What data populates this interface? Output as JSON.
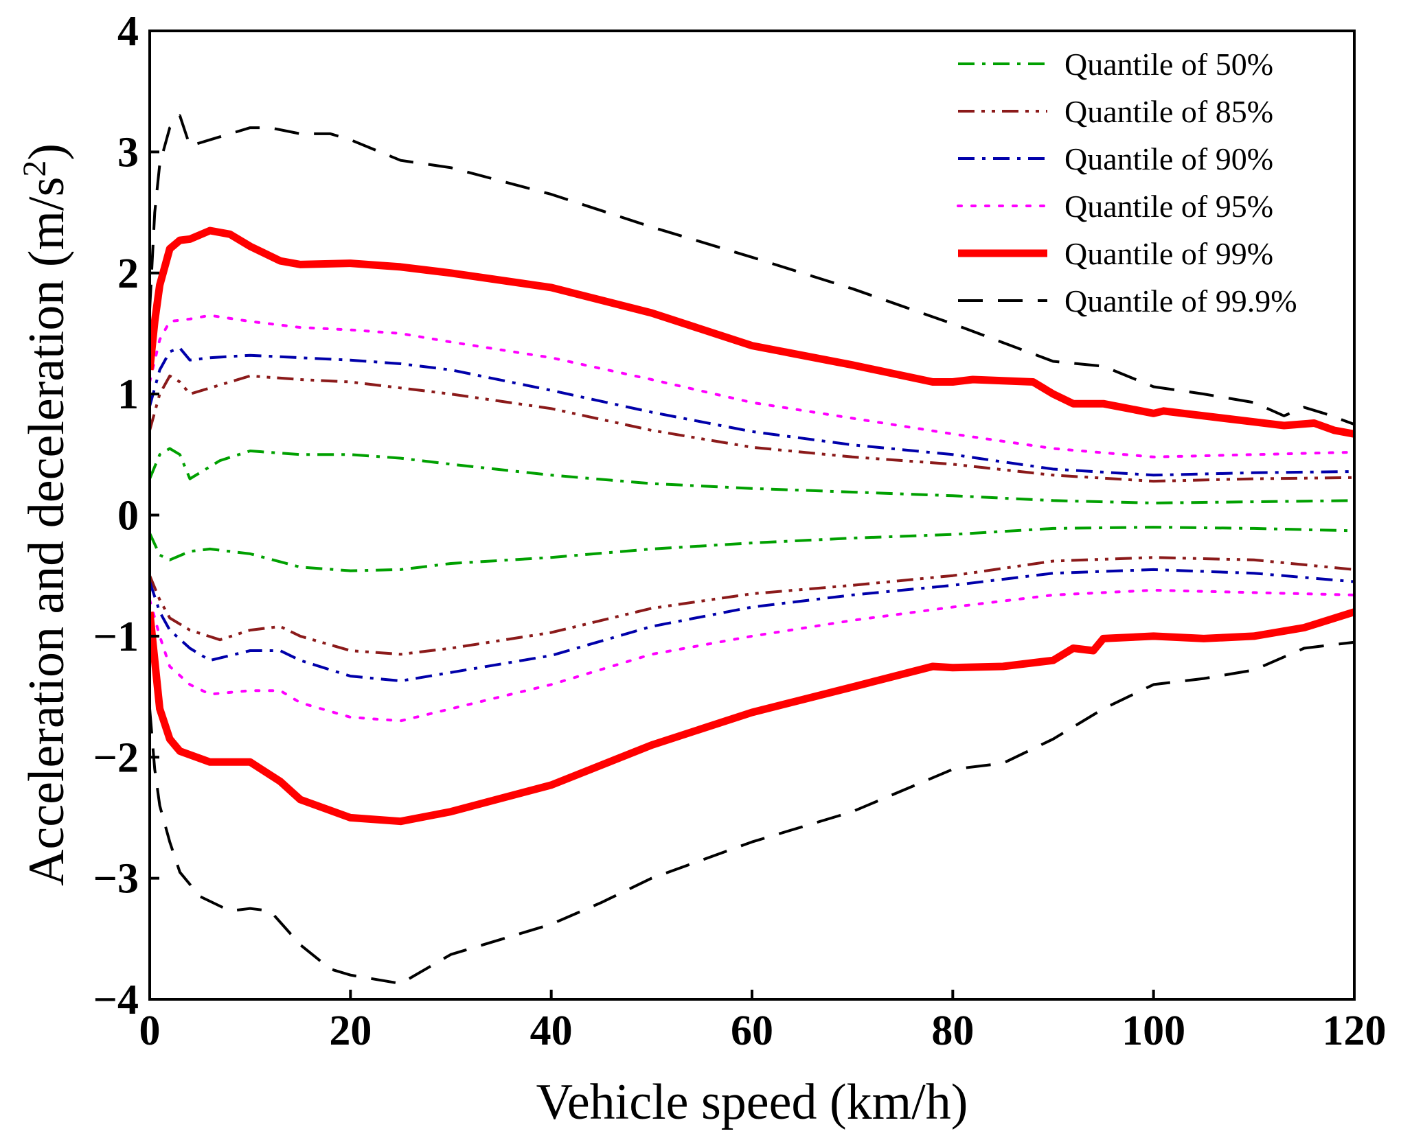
{
  "chart_data": {
    "type": "line",
    "title": "",
    "xlabel": "Vehicle speed (km/h)",
    "ylabel_main": "Acceleration and deceleration (m/s",
    "ylabel_sup": "2",
    "ylabel_close": ")",
    "xlim": [
      0,
      120
    ],
    "ylim": [
      -4,
      4
    ],
    "xticks": [
      0,
      20,
      40,
      60,
      80,
      100,
      120
    ],
    "yticks": [
      -4,
      -3,
      -2,
      -1,
      0,
      1,
      2,
      3,
      4
    ],
    "xtick_labels": [
      "0",
      "20",
      "40",
      "60",
      "80",
      "100",
      "120"
    ],
    "ytick_labels": [
      "−4",
      "−3",
      "−2",
      "−1",
      "0",
      "1",
      "2",
      "3",
      "4"
    ],
    "grid": false,
    "legend_position": "top-right",
    "series": [
      {
        "name": "Quantile of 50%",
        "color": "#00a000",
        "style": "dashdot",
        "upper": [
          [
            0,
            0.3
          ],
          [
            1,
            0.5
          ],
          [
            2,
            0.55
          ],
          [
            3,
            0.5
          ],
          [
            4,
            0.3
          ],
          [
            5,
            0.35
          ],
          [
            7,
            0.45
          ],
          [
            10,
            0.53
          ],
          [
            15,
            0.5
          ],
          [
            20,
            0.5
          ],
          [
            25,
            0.47
          ],
          [
            30,
            0.42
          ],
          [
            40,
            0.33
          ],
          [
            50,
            0.26
          ],
          [
            60,
            0.22
          ],
          [
            70,
            0.19
          ],
          [
            80,
            0.16
          ],
          [
            90,
            0.12
          ],
          [
            100,
            0.1
          ],
          [
            110,
            0.11
          ],
          [
            120,
            0.12
          ]
        ],
        "lower": [
          [
            0,
            -0.15
          ],
          [
            1,
            -0.33
          ],
          [
            2,
            -0.37
          ],
          [
            4,
            -0.3
          ],
          [
            6,
            -0.28
          ],
          [
            10,
            -0.32
          ],
          [
            15,
            -0.43
          ],
          [
            20,
            -0.46
          ],
          [
            25,
            -0.45
          ],
          [
            30,
            -0.4
          ],
          [
            40,
            -0.35
          ],
          [
            50,
            -0.28
          ],
          [
            60,
            -0.23
          ],
          [
            70,
            -0.19
          ],
          [
            80,
            -0.16
          ],
          [
            90,
            -0.11
          ],
          [
            100,
            -0.1
          ],
          [
            110,
            -0.11
          ],
          [
            120,
            -0.13
          ]
        ]
      },
      {
        "name": "Quantile of 85%",
        "color": "#8b1a1a",
        "style": "dashdotdot",
        "upper": [
          [
            0,
            0.7
          ],
          [
            1,
            1.0
          ],
          [
            2,
            1.15
          ],
          [
            3,
            1.1
          ],
          [
            4,
            1.0
          ],
          [
            6,
            1.05
          ],
          [
            10,
            1.15
          ],
          [
            15,
            1.12
          ],
          [
            20,
            1.1
          ],
          [
            25,
            1.05
          ],
          [
            30,
            1.0
          ],
          [
            40,
            0.88
          ],
          [
            50,
            0.7
          ],
          [
            60,
            0.56
          ],
          [
            70,
            0.48
          ],
          [
            80,
            0.42
          ],
          [
            90,
            0.33
          ],
          [
            100,
            0.28
          ],
          [
            110,
            0.3
          ],
          [
            120,
            0.31
          ]
        ],
        "lower": [
          [
            0,
            -0.5
          ],
          [
            1,
            -0.7
          ],
          [
            2,
            -0.85
          ],
          [
            4,
            -0.95
          ],
          [
            7,
            -1.03
          ],
          [
            10,
            -0.95
          ],
          [
            13,
            -0.92
          ],
          [
            15,
            -1.0
          ],
          [
            20,
            -1.12
          ],
          [
            25,
            -1.15
          ],
          [
            30,
            -1.1
          ],
          [
            40,
            -0.97
          ],
          [
            50,
            -0.77
          ],
          [
            60,
            -0.65
          ],
          [
            70,
            -0.58
          ],
          [
            80,
            -0.5
          ],
          [
            90,
            -0.38
          ],
          [
            100,
            -0.35
          ],
          [
            110,
            -0.37
          ],
          [
            120,
            -0.45
          ]
        ]
      },
      {
        "name": "Quantile of 90%",
        "color": "#0000aa",
        "style": "dashdot",
        "upper": [
          [
            0,
            0.9
          ],
          [
            1,
            1.2
          ],
          [
            2,
            1.35
          ],
          [
            3,
            1.38
          ],
          [
            4,
            1.28
          ],
          [
            6,
            1.3
          ],
          [
            10,
            1.32
          ],
          [
            15,
            1.3
          ],
          [
            20,
            1.28
          ],
          [
            25,
            1.25
          ],
          [
            30,
            1.2
          ],
          [
            40,
            1.03
          ],
          [
            50,
            0.85
          ],
          [
            60,
            0.69
          ],
          [
            70,
            0.58
          ],
          [
            80,
            0.5
          ],
          [
            90,
            0.38
          ],
          [
            100,
            0.33
          ],
          [
            110,
            0.35
          ],
          [
            120,
            0.36
          ]
        ],
        "lower": [
          [
            0,
            -0.55
          ],
          [
            1,
            -0.8
          ],
          [
            2,
            -0.95
          ],
          [
            4,
            -1.1
          ],
          [
            6,
            -1.2
          ],
          [
            10,
            -1.12
          ],
          [
            13,
            -1.12
          ],
          [
            15,
            -1.2
          ],
          [
            20,
            -1.33
          ],
          [
            25,
            -1.37
          ],
          [
            30,
            -1.3
          ],
          [
            40,
            -1.16
          ],
          [
            50,
            -0.92
          ],
          [
            60,
            -0.76
          ],
          [
            70,
            -0.66
          ],
          [
            80,
            -0.58
          ],
          [
            90,
            -0.48
          ],
          [
            100,
            -0.45
          ],
          [
            110,
            -0.48
          ],
          [
            120,
            -0.55
          ]
        ]
      },
      {
        "name": "Quantile of 95%",
        "color": "#ff00ff",
        "style": "dot",
        "upper": [
          [
            0,
            1.1
          ],
          [
            1,
            1.45
          ],
          [
            2,
            1.6
          ],
          [
            4,
            1.62
          ],
          [
            6,
            1.65
          ],
          [
            10,
            1.6
          ],
          [
            15,
            1.55
          ],
          [
            20,
            1.53
          ],
          [
            25,
            1.5
          ],
          [
            30,
            1.43
          ],
          [
            40,
            1.3
          ],
          [
            50,
            1.12
          ],
          [
            60,
            0.93
          ],
          [
            70,
            0.8
          ],
          [
            80,
            0.67
          ],
          [
            90,
            0.55
          ],
          [
            100,
            0.48
          ],
          [
            110,
            0.5
          ],
          [
            120,
            0.52
          ]
        ],
        "lower": [
          [
            0,
            -0.7
          ],
          [
            1,
            -1.0
          ],
          [
            2,
            -1.25
          ],
          [
            4,
            -1.4
          ],
          [
            6,
            -1.48
          ],
          [
            10,
            -1.45
          ],
          [
            13,
            -1.45
          ],
          [
            15,
            -1.55
          ],
          [
            20,
            -1.67
          ],
          [
            25,
            -1.7
          ],
          [
            30,
            -1.6
          ],
          [
            40,
            -1.4
          ],
          [
            50,
            -1.15
          ],
          [
            60,
            -1.0
          ],
          [
            70,
            -0.87
          ],
          [
            80,
            -0.76
          ],
          [
            90,
            -0.66
          ],
          [
            100,
            -0.62
          ],
          [
            110,
            -0.64
          ],
          [
            120,
            -0.66
          ]
        ]
      },
      {
        "name": "Quantile of 99%",
        "color": "#ff0000",
        "style": "solid",
        "upper": [
          [
            0,
            1.2
          ],
          [
            0.5,
            1.6
          ],
          [
            1,
            1.9
          ],
          [
            2,
            2.2
          ],
          [
            3,
            2.27
          ],
          [
            4,
            2.28
          ],
          [
            6,
            2.35
          ],
          [
            8,
            2.32
          ],
          [
            10,
            2.22
          ],
          [
            13,
            2.1
          ],
          [
            15,
            2.07
          ],
          [
            20,
            2.08
          ],
          [
            25,
            2.05
          ],
          [
            30,
            2.0
          ],
          [
            40,
            1.88
          ],
          [
            50,
            1.67
          ],
          [
            60,
            1.4
          ],
          [
            70,
            1.24
          ],
          [
            78,
            1.1
          ],
          [
            80,
            1.1
          ],
          [
            82,
            1.12
          ],
          [
            88,
            1.1
          ],
          [
            90,
            1.0
          ],
          [
            92,
            0.92
          ],
          [
            95,
            0.92
          ],
          [
            100,
            0.84
          ],
          [
            101,
            0.86
          ],
          [
            110,
            0.77
          ],
          [
            113,
            0.74
          ],
          [
            116,
            0.76
          ],
          [
            118,
            0.7
          ],
          [
            120,
            0.67
          ]
        ],
        "lower": [
          [
            0,
            -0.8
          ],
          [
            0.5,
            -1.2
          ],
          [
            1,
            -1.6
          ],
          [
            2,
            -1.85
          ],
          [
            3,
            -1.95
          ],
          [
            6,
            -2.04
          ],
          [
            10,
            -2.04
          ],
          [
            13,
            -2.2
          ],
          [
            15,
            -2.35
          ],
          [
            20,
            -2.5
          ],
          [
            25,
            -2.53
          ],
          [
            30,
            -2.45
          ],
          [
            40,
            -2.23
          ],
          [
            50,
            -1.9
          ],
          [
            60,
            -1.63
          ],
          [
            70,
            -1.42
          ],
          [
            78,
            -1.25
          ],
          [
            80,
            -1.26
          ],
          [
            85,
            -1.25
          ],
          [
            90,
            -1.2
          ],
          [
            92,
            -1.1
          ],
          [
            94,
            -1.12
          ],
          [
            95,
            -1.02
          ],
          [
            100,
            -1.0
          ],
          [
            105,
            -1.02
          ],
          [
            110,
            -1.0
          ],
          [
            115,
            -0.93
          ],
          [
            120,
            -0.8
          ]
        ]
      },
      {
        "name": "Quantile of 99.9%",
        "color": "#000000",
        "style": "dash",
        "upper": [
          [
            0,
            1.7
          ],
          [
            0.5,
            2.5
          ],
          [
            1,
            2.9
          ],
          [
            2,
            3.2
          ],
          [
            3,
            3.3
          ],
          [
            4,
            3.05
          ],
          [
            6,
            3.1
          ],
          [
            10,
            3.2
          ],
          [
            12,
            3.2
          ],
          [
            15,
            3.15
          ],
          [
            18,
            3.15
          ],
          [
            20,
            3.1
          ],
          [
            25,
            2.93
          ],
          [
            30,
            2.87
          ],
          [
            40,
            2.65
          ],
          [
            50,
            2.38
          ],
          [
            60,
            2.13
          ],
          [
            70,
            1.87
          ],
          [
            80,
            1.58
          ],
          [
            90,
            1.27
          ],
          [
            95,
            1.23
          ],
          [
            100,
            1.06
          ],
          [
            105,
            1.0
          ],
          [
            110,
            0.93
          ],
          [
            113,
            0.82
          ],
          [
            115,
            0.89
          ],
          [
            117,
            0.84
          ],
          [
            120,
            0.75
          ]
        ],
        "lower": [
          [
            0,
            -1.6
          ],
          [
            0.5,
            -2.1
          ],
          [
            1,
            -2.4
          ],
          [
            2,
            -2.7
          ],
          [
            3,
            -2.95
          ],
          [
            5,
            -3.15
          ],
          [
            8,
            -3.27
          ],
          [
            10,
            -3.25
          ],
          [
            12,
            -3.27
          ],
          [
            15,
            -3.55
          ],
          [
            18,
            -3.75
          ],
          [
            20,
            -3.8
          ],
          [
            25,
            -3.87
          ],
          [
            30,
            -3.63
          ],
          [
            40,
            -3.38
          ],
          [
            45,
            -3.2
          ],
          [
            50,
            -3.0
          ],
          [
            60,
            -2.7
          ],
          [
            70,
            -2.45
          ],
          [
            80,
            -2.1
          ],
          [
            85,
            -2.05
          ],
          [
            90,
            -1.85
          ],
          [
            95,
            -1.6
          ],
          [
            100,
            -1.4
          ],
          [
            105,
            -1.35
          ],
          [
            110,
            -1.28
          ],
          [
            115,
            -1.1
          ],
          [
            120,
            -1.05
          ]
        ]
      }
    ]
  }
}
